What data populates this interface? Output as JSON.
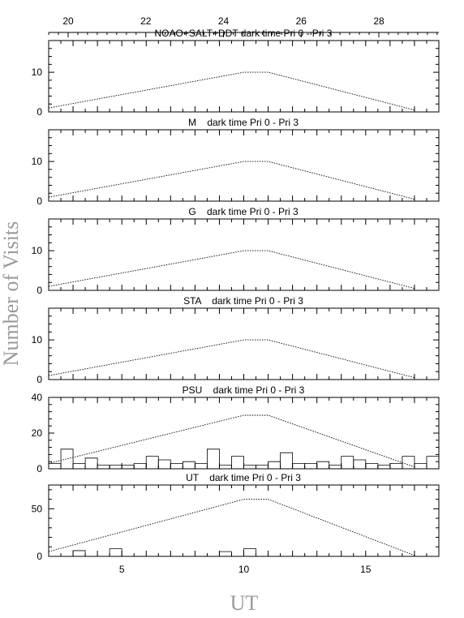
{
  "figure": {
    "ylabel": "Number of Visits",
    "xlabel": "UT",
    "top_axis_ticks": [
      "20",
      "22",
      "24",
      "26",
      "28"
    ],
    "bottom_axis_ticks": [
      "5",
      "10",
      "15"
    ]
  },
  "chart_data": [
    {
      "type": "line",
      "title": "NOAO+SALT+DDT dark time Pri 0 - Pri 3",
      "x_unit": "UT (hours)",
      "xlim": [
        2,
        18
      ],
      "ylim": [
        0,
        18
      ],
      "yticks": [
        "0",
        "10"
      ],
      "availability_curve": {
        "x": [
          2,
          10,
          11,
          17
        ],
        "y": [
          1,
          10,
          10,
          0.5
        ]
      },
      "histogram": {
        "bin_width": 0.5,
        "bins": []
      }
    },
    {
      "type": "line",
      "title": "M    dark time Pri 0 - Pri 3",
      "x_unit": "UT (hours)",
      "xlim": [
        2,
        18
      ],
      "ylim": [
        0,
        18
      ],
      "yticks": [
        "0",
        "10"
      ],
      "availability_curve": {
        "x": [
          2,
          10,
          11,
          17
        ],
        "y": [
          1,
          10,
          10,
          0.5
        ]
      },
      "histogram": {
        "bin_width": 0.5,
        "bins": []
      }
    },
    {
      "type": "line",
      "title": "G    dark time Pri 0 - Pri 3",
      "x_unit": "UT (hours)",
      "xlim": [
        2,
        18
      ],
      "ylim": [
        0,
        18
      ],
      "yticks": [
        "0",
        "10"
      ],
      "availability_curve": {
        "x": [
          2,
          10,
          11,
          17
        ],
        "y": [
          1,
          10,
          10,
          0.5
        ]
      },
      "histogram": {
        "bin_width": 0.5,
        "bins": []
      }
    },
    {
      "type": "line",
      "title": "STA    dark time Pri 0 - Pri 3",
      "x_unit": "UT (hours)",
      "xlim": [
        2,
        18
      ],
      "ylim": [
        0,
        18
      ],
      "yticks": [
        "0",
        "10"
      ],
      "availability_curve": {
        "x": [
          2,
          10,
          11,
          17
        ],
        "y": [
          1,
          10,
          10,
          0.5
        ]
      },
      "histogram": {
        "bin_width": 0.5,
        "bins": []
      }
    },
    {
      "type": "bar",
      "title": "PSU    dark time Pri 0 - Pri 3",
      "x_unit": "UT (hours)",
      "xlim": [
        2,
        18
      ],
      "ylim": [
        0,
        40
      ],
      "yticks": [
        "0",
        "20",
        "40"
      ],
      "availability_curve": {
        "x": [
          2,
          10,
          11,
          17
        ],
        "y": [
          3,
          30,
          30,
          1
        ]
      },
      "histogram": {
        "bin_width": 0.5,
        "bins": [
          {
            "start": 2.0,
            "value": 3
          },
          {
            "start": 2.5,
            "value": 11
          },
          {
            "start": 3.0,
            "value": 3
          },
          {
            "start": 3.5,
            "value": 6
          },
          {
            "start": 4.0,
            "value": 2
          },
          {
            "start": 4.5,
            "value": 2
          },
          {
            "start": 5.0,
            "value": 2
          },
          {
            "start": 5.5,
            "value": 3
          },
          {
            "start": 6.0,
            "value": 7
          },
          {
            "start": 6.5,
            "value": 5
          },
          {
            "start": 7.0,
            "value": 3
          },
          {
            "start": 7.5,
            "value": 4
          },
          {
            "start": 8.0,
            "value": 3
          },
          {
            "start": 8.5,
            "value": 11
          },
          {
            "start": 9.0,
            "value": 2
          },
          {
            "start": 9.5,
            "value": 7
          },
          {
            "start": 10.0,
            "value": 2
          },
          {
            "start": 10.5,
            "value": 2
          },
          {
            "start": 11.0,
            "value": 4
          },
          {
            "start": 11.5,
            "value": 9
          },
          {
            "start": 12.0,
            "value": 3
          },
          {
            "start": 12.5,
            "value": 3
          },
          {
            "start": 13.0,
            "value": 4
          },
          {
            "start": 13.5,
            "value": 2
          },
          {
            "start": 14.0,
            "value": 7
          },
          {
            "start": 14.5,
            "value": 5
          },
          {
            "start": 15.0,
            "value": 3
          },
          {
            "start": 15.5,
            "value": 2
          },
          {
            "start": 16.0,
            "value": 3
          },
          {
            "start": 16.5,
            "value": 7
          },
          {
            "start": 17.0,
            "value": 3
          },
          {
            "start": 17.5,
            "value": 7
          }
        ]
      }
    },
    {
      "type": "bar",
      "title": "UT    dark time Pri 0 - Pri 3",
      "x_unit": "UT (hours)",
      "xlim": [
        2,
        18
      ],
      "ylim": [
        0,
        75
      ],
      "yticks": [
        "0",
        "50"
      ],
      "availability_curve": {
        "x": [
          2,
          10,
          11,
          17
        ],
        "y": [
          5,
          60,
          60,
          1
        ]
      },
      "histogram": {
        "bin_width": 0.5,
        "bins": [
          {
            "start": 3.0,
            "value": 6
          },
          {
            "start": 4.5,
            "value": 8
          },
          {
            "start": 9.0,
            "value": 5
          },
          {
            "start": 10.0,
            "value": 8
          }
        ]
      }
    }
  ]
}
